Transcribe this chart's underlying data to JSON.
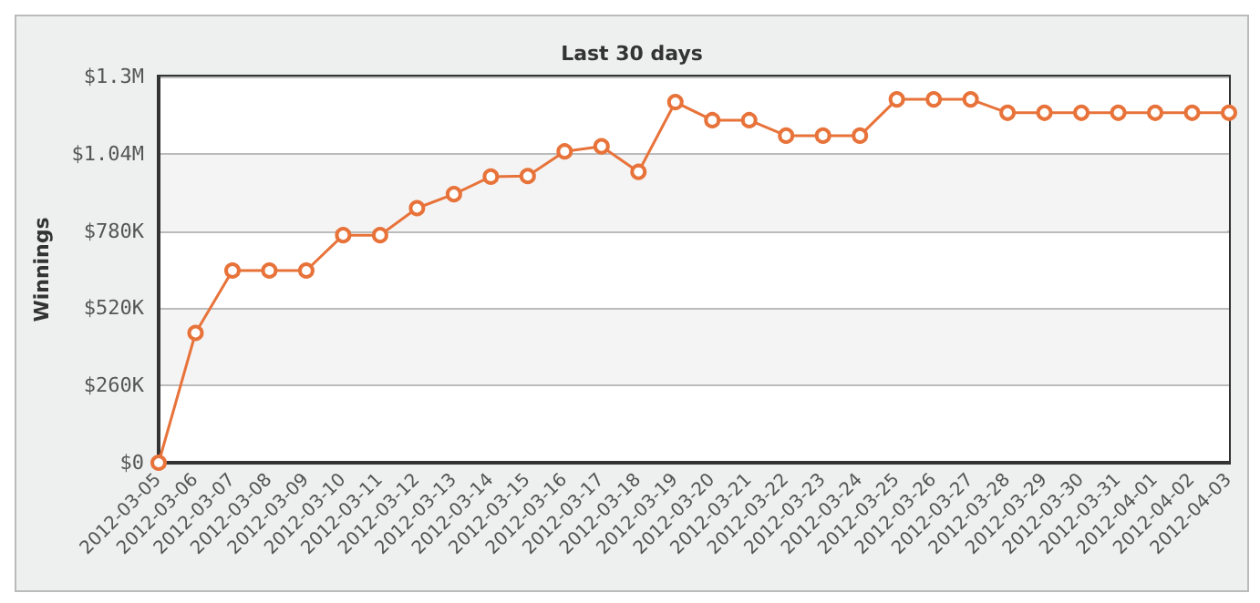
{
  "chart_data": {
    "type": "line",
    "title": "Last 30 days",
    "ylabel": "Winnings",
    "categories": [
      "2012-03-05",
      "2012-03-06",
      "2012-03-07",
      "2012-03-08",
      "2012-03-09",
      "2012-03-10",
      "2012-03-11",
      "2012-03-12",
      "2012-03-13",
      "2012-03-14",
      "2012-03-15",
      "2012-03-16",
      "2012-03-17",
      "2012-03-18",
      "2012-03-19",
      "2012-03-20",
      "2012-03-21",
      "2012-03-22",
      "2012-03-23",
      "2012-03-24",
      "2012-03-25",
      "2012-03-26",
      "2012-03-27",
      "2012-03-28",
      "2012-03-29",
      "2012-03-30",
      "2012-03-31",
      "2012-04-01",
      "2012-04-02",
      "2012-04-03"
    ],
    "series": [
      {
        "color": "#e8733a",
        "values": [
          0,
          437000,
          647000,
          647000,
          647000,
          766000,
          766000,
          857000,
          904000,
          963000,
          965000,
          1048000,
          1065000,
          979000,
          1214000,
          1153000,
          1153000,
          1101000,
          1101000,
          1101000,
          1223000,
          1223000,
          1223000,
          1178000,
          1178000,
          1178000,
          1178000,
          1178000,
          1178000,
          1178000
        ]
      }
    ],
    "ylim": [
      0,
      1300000
    ],
    "yticks": [
      {
        "value": 0,
        "label": "$0"
      },
      {
        "value": 260000,
        "label": "$260K"
      },
      {
        "value": 520000,
        "label": "$520K"
      },
      {
        "value": 780000,
        "label": "$780K"
      },
      {
        "value": 1040000,
        "label": "$1.04M"
      },
      {
        "value": 1300000,
        "label": "$1.3M"
      }
    ],
    "grid": "y",
    "marker": "circle",
    "line_style": "solid"
  }
}
